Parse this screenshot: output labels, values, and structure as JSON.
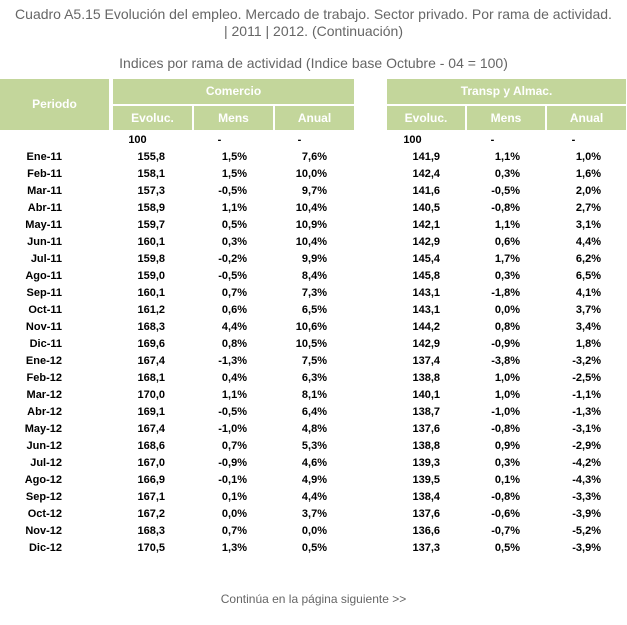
{
  "title": {
    "line1": "Cuadro A5.15 Evolución del empleo. Mercado de trabajo. Sector privado. Por rama de actividad.",
    "line2": "| 2011 | 2012. (Continuación)"
  },
  "subtitle": "Indices por rama de actividad (Indice base Octubre - 04 = 100)",
  "headers": {
    "periodo": "Periodo",
    "comercio": "Comercio",
    "transp": "Transp y Almac.",
    "evoluc": "Evoluc.",
    "mens": "Mens",
    "anual": "Anual"
  },
  "base_row": [
    "100",
    "-",
    "-",
    "100",
    "-",
    "-"
  ],
  "rows": [
    {
      "periodo": "Ene-11",
      "c": [
        "155,8",
        "1,5%",
        "7,6%"
      ],
      "t": [
        "141,9",
        "1,1%",
        "1,0%"
      ]
    },
    {
      "periodo": "Feb-11",
      "c": [
        "158,1",
        "1,5%",
        "10,0%"
      ],
      "t": [
        "142,4",
        "0,3%",
        "1,6%"
      ]
    },
    {
      "periodo": "Mar-11",
      "c": [
        "157,3",
        "-0,5%",
        "9,7%"
      ],
      "t": [
        "141,6",
        "-0,5%",
        "2,0%"
      ]
    },
    {
      "periodo": "Abr-11",
      "c": [
        "158,9",
        "1,1%",
        "10,4%"
      ],
      "t": [
        "140,5",
        "-0,8%",
        "2,7%"
      ]
    },
    {
      "periodo": "May-11",
      "c": [
        "159,7",
        "0,5%",
        "10,9%"
      ],
      "t": [
        "142,1",
        "1,1%",
        "3,1%"
      ]
    },
    {
      "periodo": "Jun-11",
      "c": [
        "160,1",
        "0,3%",
        "10,4%"
      ],
      "t": [
        "142,9",
        "0,6%",
        "4,4%"
      ]
    },
    {
      "periodo": "Jul-11",
      "c": [
        "159,8",
        "-0,2%",
        "9,9%"
      ],
      "t": [
        "145,4",
        "1,7%",
        "6,2%"
      ]
    },
    {
      "periodo": "Ago-11",
      "c": [
        "159,0",
        "-0,5%",
        "8,4%"
      ],
      "t": [
        "145,8",
        "0,3%",
        "6,5%"
      ]
    },
    {
      "periodo": "Sep-11",
      "c": [
        "160,1",
        "0,7%",
        "7,3%"
      ],
      "t": [
        "143,1",
        "-1,8%",
        "4,1%"
      ]
    },
    {
      "periodo": "Oct-11",
      "c": [
        "161,2",
        "0,6%",
        "6,5%"
      ],
      "t": [
        "143,1",
        "0,0%",
        "3,7%"
      ]
    },
    {
      "periodo": "Nov-11",
      "c": [
        "168,3",
        "4,4%",
        "10,6%"
      ],
      "t": [
        "144,2",
        "0,8%",
        "3,4%"
      ]
    },
    {
      "periodo": "Dic-11",
      "c": [
        "169,6",
        "0,8%",
        "10,5%"
      ],
      "t": [
        "142,9",
        "-0,9%",
        "1,8%"
      ]
    },
    {
      "periodo": "Ene-12",
      "c": [
        "167,4",
        "-1,3%",
        "7,5%"
      ],
      "t": [
        "137,4",
        "-3,8%",
        "-3,2%"
      ]
    },
    {
      "periodo": "Feb-12",
      "c": [
        "168,1",
        "0,4%",
        "6,3%"
      ],
      "t": [
        "138,8",
        "1,0%",
        "-2,5%"
      ]
    },
    {
      "periodo": "Mar-12",
      "c": [
        "170,0",
        "1,1%",
        "8,1%"
      ],
      "t": [
        "140,1",
        "1,0%",
        "-1,1%"
      ]
    },
    {
      "periodo": "Abr-12",
      "c": [
        "169,1",
        "-0,5%",
        "6,4%"
      ],
      "t": [
        "138,7",
        "-1,0%",
        "-1,3%"
      ]
    },
    {
      "periodo": "May-12",
      "c": [
        "167,4",
        "-1,0%",
        "4,8%"
      ],
      "t": [
        "137,6",
        "-0,8%",
        "-3,1%"
      ]
    },
    {
      "periodo": "Jun-12",
      "c": [
        "168,6",
        "0,7%",
        "5,3%"
      ],
      "t": [
        "138,8",
        "0,9%",
        "-2,9%"
      ]
    },
    {
      "periodo": "Jul-12",
      "c": [
        "167,0",
        "-0,9%",
        "4,6%"
      ],
      "t": [
        "139,3",
        "0,3%",
        "-4,2%"
      ]
    },
    {
      "periodo": "Ago-12",
      "c": [
        "166,9",
        "-0,1%",
        "4,9%"
      ],
      "t": [
        "139,5",
        "0,1%",
        "-4,3%"
      ]
    },
    {
      "periodo": "Sep-12",
      "c": [
        "167,1",
        "0,1%",
        "4,4%"
      ],
      "t": [
        "138,4",
        "-0,8%",
        "-3,3%"
      ]
    },
    {
      "periodo": "Oct-12",
      "c": [
        "167,2",
        "0,0%",
        "3,7%"
      ],
      "t": [
        "137,6",
        "-0,6%",
        "-3,9%"
      ]
    },
    {
      "periodo": "Nov-12",
      "c": [
        "168,3",
        "0,7%",
        "0,0%"
      ],
      "t": [
        "136,6",
        "-0,7%",
        "-5,2%"
      ]
    },
    {
      "periodo": "Dic-12",
      "c": [
        "170,5",
        "1,3%",
        "0,5%"
      ],
      "t": [
        "137,3",
        "0,5%",
        "-3,9%"
      ]
    }
  ],
  "footer": "Continúa en la página siguiente >>",
  "colors": {
    "header_bg": "#c3d69b",
    "header_text": "#ffffff",
    "title_text": "#666666"
  }
}
